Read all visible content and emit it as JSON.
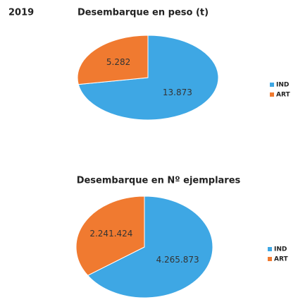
{
  "year": "2019",
  "chart_data": [
    {
      "type": "pie",
      "title": "Desembarque en peso (t)",
      "categories": [
        "IND",
        "ART"
      ],
      "values": [
        13873,
        5282
      ],
      "value_labels": [
        "13.873",
        "5.282"
      ],
      "colors": [
        "#3ea7e4",
        "#f07a30"
      ]
    },
    {
      "type": "pie",
      "title": "Desembarque en Nº ejemplares",
      "categories": [
        "IND",
        "ART"
      ],
      "values": [
        4265873,
        2241424
      ],
      "value_labels": [
        "4.265.873",
        "2.241.424"
      ],
      "colors": [
        "#3ea7e4",
        "#f07a30"
      ]
    }
  ]
}
